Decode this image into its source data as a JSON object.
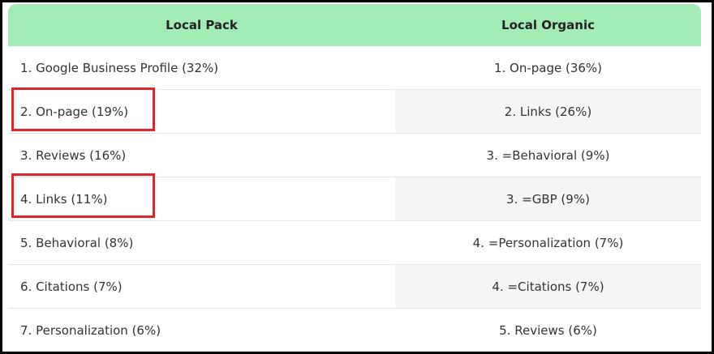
{
  "table": {
    "header": [
      "Local Pack",
      "Local Organic"
    ],
    "rows": [
      [
        "1. Google Business Profile (32%)",
        "1. On-page (36%)"
      ],
      [
        "2. On-page (19%)",
        "2. Links (26%)"
      ],
      [
        "3. Reviews (16%)",
        "3. =Behavioral (9%)"
      ],
      [
        "4. Links (11%)",
        "3. =GBP (9%)"
      ],
      [
        "5. Behavioral (8%)",
        "4. =Personalization (7%)"
      ],
      [
        "6. Citations (7%)",
        "4. =Citations (7%)"
      ],
      [
        "7. Personalization (6%)",
        "5. Reviews (6%)"
      ]
    ]
  }
}
